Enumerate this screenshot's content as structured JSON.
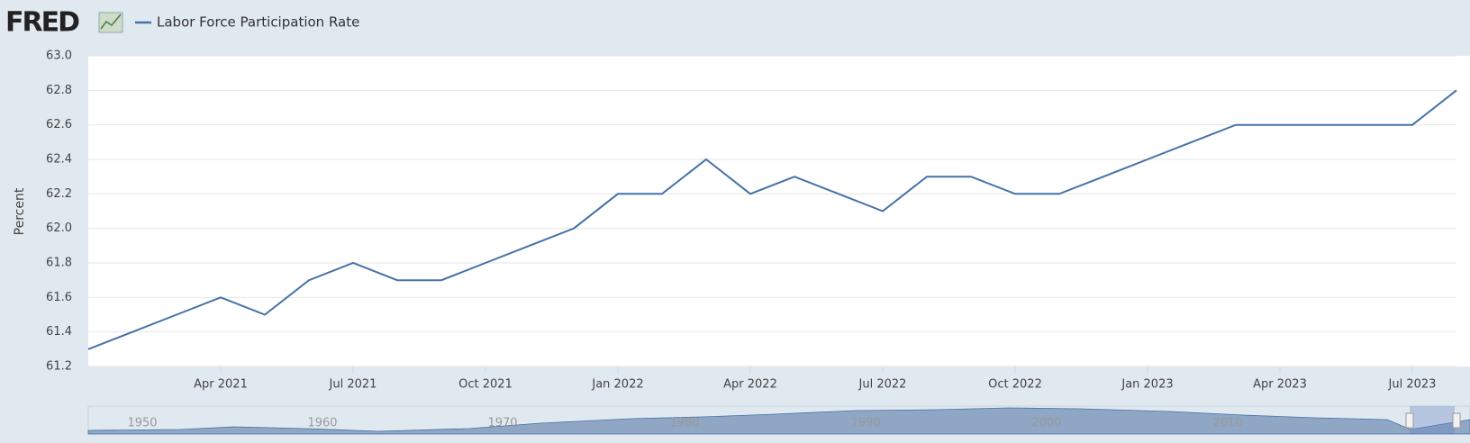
{
  "logo": "FRED",
  "chart_data": {
    "type": "line",
    "y_label": "Percent",
    "x": [
      "2021-01",
      "2021-02",
      "2021-03",
      "2021-04",
      "2021-05",
      "2021-06",
      "2021-07",
      "2021-08",
      "2021-09",
      "2021-10",
      "2021-11",
      "2021-12",
      "2022-01",
      "2022-02",
      "2022-03",
      "2022-04",
      "2022-05",
      "2022-06",
      "2022-07",
      "2022-08",
      "2022-09",
      "2022-10",
      "2022-11",
      "2022-12",
      "2023-01",
      "2023-02",
      "2023-03",
      "2023-04",
      "2023-05",
      "2023-06",
      "2023-07",
      "2023-08"
    ],
    "series": [
      {
        "name": "Labor Force Participation Rate",
        "color": "#4572a7",
        "values": [
          61.3,
          61.4,
          61.5,
          61.6,
          61.5,
          61.7,
          61.8,
          61.7,
          61.7,
          61.8,
          61.9,
          62.0,
          62.2,
          62.2,
          62.4,
          62.2,
          62.3,
          62.2,
          62.1,
          62.3,
          62.3,
          62.2,
          62.2,
          62.3,
          62.4,
          62.5,
          62.6,
          62.6,
          62.6,
          62.6,
          62.6,
          62.8
        ]
      }
    ],
    "xlim": [
      "2021-01",
      "2023-08"
    ],
    "xticks": [
      {
        "value": "2021-04",
        "label": "Apr 2021"
      },
      {
        "value": "2021-07",
        "label": "Jul 2021"
      },
      {
        "value": "2021-10",
        "label": "Oct 2021"
      },
      {
        "value": "2022-01",
        "label": "Jan 2022"
      },
      {
        "value": "2022-04",
        "label": "Apr 2022"
      },
      {
        "value": "2022-07",
        "label": "Jul 2022"
      },
      {
        "value": "2022-10",
        "label": "Oct 2022"
      },
      {
        "value": "2023-01",
        "label": "Jan 2023"
      },
      {
        "value": "2023-04",
        "label": "Apr 2023"
      },
      {
        "value": "2023-07",
        "label": "Jul 2023"
      }
    ],
    "ylim": [
      61.2,
      63.0
    ],
    "yticks": [
      61.2,
      61.4,
      61.6,
      61.8,
      {
        "value": 62.0,
        "label": "62.0"
      },
      62.2,
      62.4,
      62.6,
      62.8,
      {
        "value": 63.0,
        "label": "63.0"
      }
    ],
    "grid": true,
    "navigator_labels": [
      "1950",
      "1960",
      "1970",
      "1980",
      "1990",
      "2000",
      "2010"
    ]
  }
}
